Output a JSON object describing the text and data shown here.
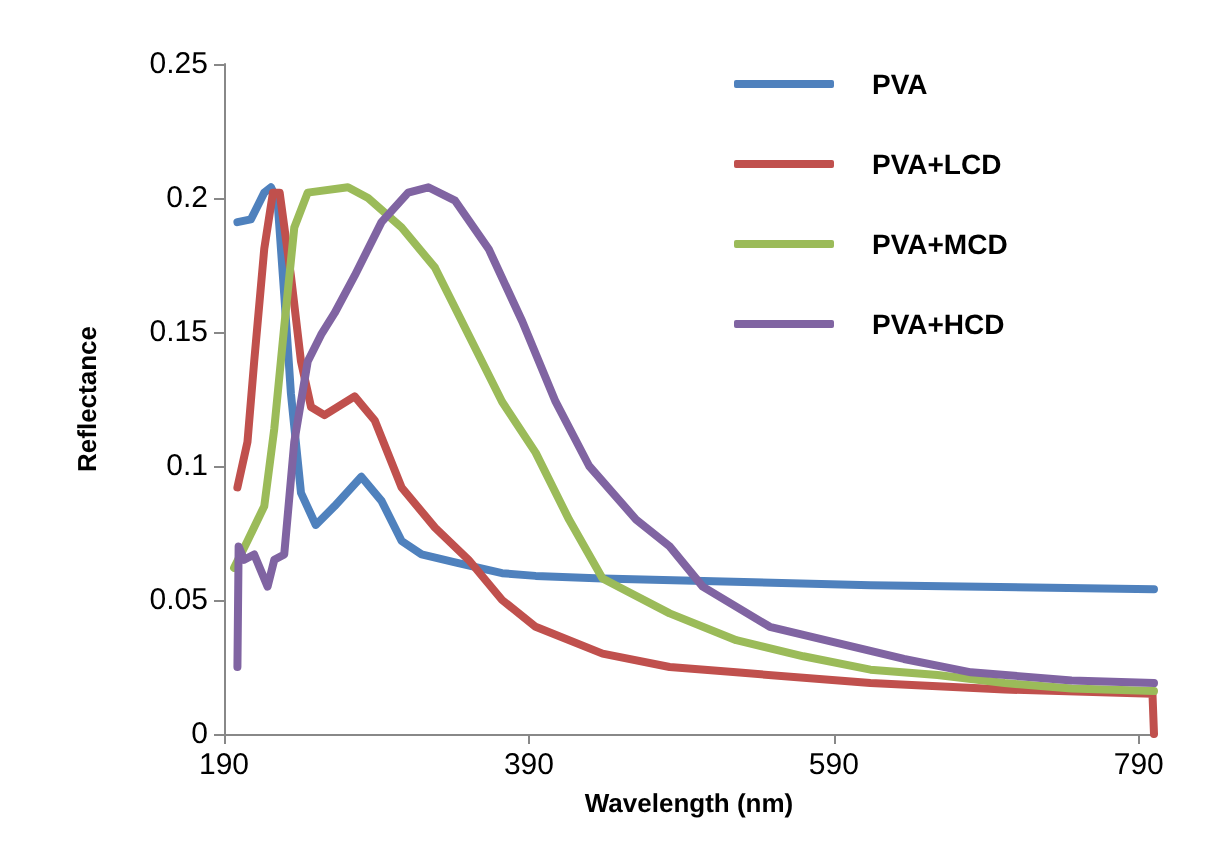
{
  "chart_data": {
    "type": "line",
    "xlabel": "Wavelength (nm)",
    "ylabel": "Reflectance",
    "xlim": [
      190,
      800
    ],
    "xticks": [
      190,
      390,
      590,
      790
    ],
    "ylim": [
      0,
      0.25
    ],
    "yticks": [
      0,
      0.05,
      0.1,
      0.15,
      0.2,
      0.25
    ],
    "grid": false,
    "legend": "top right",
    "marker": "none",
    "line_style": "solid",
    "series": [
      {
        "name": "PVA",
        "color": "#4f81bd",
        "x": [
          198.8,
          207.6,
          216.4,
          220.8,
          225.1,
          229.5,
          233.9,
          240.5,
          250.2,
          262.5,
          280.1,
          293.3,
          306.5,
          319.6,
          341.6,
          372.4,
          394.4,
          438.3,
          614,
          800
        ],
        "values": [
          0.191,
          0.192,
          0.202,
          0.204,
          0.199,
          0.164,
          0.127,
          0.09,
          0.078,
          0.085,
          0.096,
          0.087,
          0.072,
          0.067,
          0.064,
          0.06,
          0.059,
          0.058,
          0.0555,
          0.054
        ]
      },
      {
        "name": "PVA+LCD",
        "color": "#c0504d",
        "x": [
          198.8,
          205.4,
          209.8,
          216.4,
          222.1,
          226.5,
          233.9,
          240.5,
          247.1,
          255.9,
          275.7,
          288.9,
          306.5,
          328.4,
          350.4,
          372.4,
          394.4,
          438.3,
          482.3,
          526,
          614,
          702,
          799,
          800
        ],
        "values": [
          0.092,
          0.109,
          0.139,
          0.181,
          0.202,
          0.202,
          0.171,
          0.139,
          0.122,
          0.119,
          0.126,
          0.117,
          0.092,
          0.077,
          0.065,
          0.05,
          0.04,
          0.03,
          0.025,
          0.023,
          0.019,
          0.0166,
          0.015,
          0
        ]
      },
      {
        "name": "PVA+MCD",
        "color": "#9bbb59",
        "x": [
          196.6,
          205.4,
          216.4,
          223,
          229.5,
          236.1,
          244.9,
          271.3,
          284.5,
          306.5,
          328.4,
          350.4,
          372.4,
          394.4,
          416.3,
          438.3,
          482.3,
          526,
          570,
          614,
          658,
          702,
          746,
          800
        ],
        "values": [
          0.062,
          0.072,
          0.085,
          0.114,
          0.152,
          0.189,
          0.202,
          0.204,
          0.2,
          0.189,
          0.174,
          0.149,
          0.124,
          0.105,
          0.08,
          0.058,
          0.045,
          0.035,
          0.029,
          0.024,
          0.022,
          0.019,
          0.017,
          0.016
        ]
      },
      {
        "name": "PVA+HCD",
        "color": "#8064a2",
        "x": [
          198.8,
          199.6,
          203.2,
          209.8,
          218.6,
          223,
          229.5,
          236.1,
          244.9,
          253.7,
          262.5,
          275.7,
          293.3,
          310.8,
          324,
          341.6,
          363.6,
          385.6,
          407.5,
          429.5,
          460.3,
          482.3,
          504,
          548,
          592,
          636,
          680,
          746,
          800
        ],
        "values": [
          0.025,
          0.07,
          0.065,
          0.067,
          0.055,
          0.065,
          0.067,
          0.109,
          0.139,
          0.149,
          0.157,
          0.171,
          0.191,
          0.202,
          0.204,
          0.199,
          0.181,
          0.154,
          0.124,
          0.1,
          0.08,
          0.07,
          0.055,
          0.04,
          0.034,
          0.028,
          0.023,
          0.02,
          0.019
        ]
      }
    ]
  }
}
